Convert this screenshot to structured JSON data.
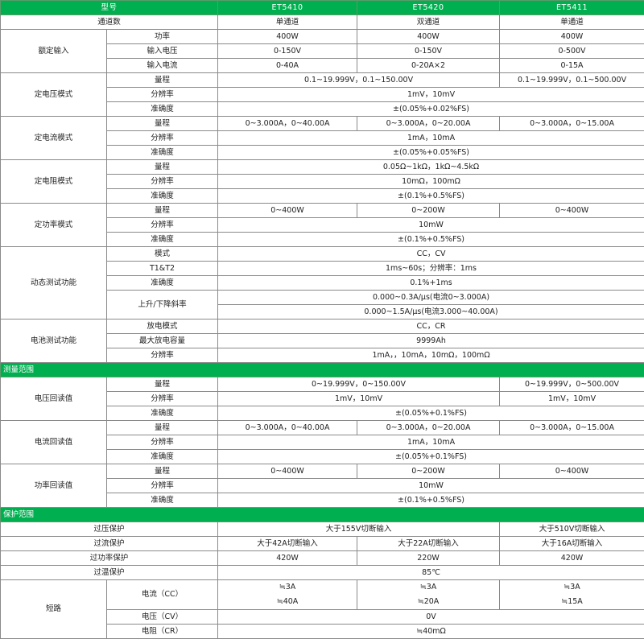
{
  "theme": {
    "header_bg": "#00b050",
    "header_text": "#ffffff",
    "border": "#8a8a8a"
  },
  "rows": [
    {
      "type": "header",
      "cells": [
        "型号",
        "ET5410",
        "ET5420",
        "ET5411"
      ]
    },
    {
      "cells": [
        "通道数",
        "单通道",
        "双通道",
        "单通道"
      ]
    },
    {
      "cells": [
        "额定输入",
        "功率",
        "400W",
        "400W",
        "400W"
      ]
    },
    {
      "cells": [
        "输入电压",
        "0-150V",
        "0-150V",
        "0-500V"
      ]
    },
    {
      "cells": [
        "输入电流",
        "0-40A",
        "0-20A×2",
        "0-15A"
      ]
    },
    {
      "cells": [
        "定电压模式",
        "量程",
        "0.1~19.999V，0.1~150.00V",
        "0.1~19.999V，0.1~500.00V"
      ]
    },
    {
      "cells": [
        "分辨率",
        "1mV，10mV"
      ]
    },
    {
      "cells": [
        "准确度",
        "±(0.05%+0.02%FS)"
      ]
    },
    {
      "cells": [
        "定电流模式",
        "量程",
        "0~3.000A，0~40.00A",
        "0~3.000A，0~20.00A",
        "0~3.000A，0~15.00A"
      ]
    },
    {
      "cells": [
        "分辨率",
        "1mA，10mA"
      ]
    },
    {
      "cells": [
        "准确度",
        "±(0.05%+0.05%FS)"
      ]
    },
    {
      "cells": [
        "定电阻模式",
        "量程",
        "0.05Ω~1kΩ，1kΩ~4.5kΩ"
      ]
    },
    {
      "cells": [
        "分辨率",
        "10mΩ，100mΩ"
      ]
    },
    {
      "cells": [
        "准确度",
        "±(0.1%+0.5%FS)"
      ]
    },
    {
      "cells": [
        "定功率模式",
        "量程",
        "0~400W",
        "0~200W",
        "0~400W"
      ]
    },
    {
      "cells": [
        "分辨率",
        "10mW"
      ]
    },
    {
      "cells": [
        "准确度",
        "±(0.1%+0.5%FS)"
      ]
    },
    {
      "cells": [
        "动态测试功能",
        "模式",
        "CC，CV"
      ]
    },
    {
      "cells": [
        "T1&T2",
        "1ms~60s；分辨率：1ms"
      ]
    },
    {
      "cells": [
        "准确度",
        "0.1%+1ms"
      ]
    },
    {
      "cells": [
        "上升/下降斜率",
        "0.000~0.3A/μs(电流0~3.000A)"
      ]
    },
    {
      "cells": [
        "0.000~1.5A/μs(电流3.000~40.00A)"
      ]
    },
    {
      "cells": [
        "电池测试功能",
        "放电模式",
        "CC，CR"
      ]
    },
    {
      "cells": [
        "最大放电容量",
        "9999Ah"
      ]
    },
    {
      "cells": [
        "分辨率",
        "1mA，，10mA，10mΩ，100mΩ"
      ]
    },
    {
      "type": "section",
      "cells": [
        "测量范围"
      ]
    },
    {
      "cells": [
        "电压回读值",
        "量程",
        "0~19.999V，0~150.00V",
        "0~19.999V，0~500.00V"
      ]
    },
    {
      "cells": [
        "分辨率",
        "1mV，10mV",
        "1mV，10mV"
      ]
    },
    {
      "cells": [
        "准确度",
        "±(0.05%+0.1%FS)"
      ]
    },
    {
      "cells": [
        "电流回读值",
        "量程",
        "0~3.000A，0~40.00A",
        "0~3.000A，0~20.00A",
        "0~3.000A，0~15.00A"
      ]
    },
    {
      "cells": [
        "分辨率",
        "1mA，10mA"
      ]
    },
    {
      "cells": [
        "准确度",
        "±(0.05%+0.1%FS)"
      ]
    },
    {
      "cells": [
        "功率回读值",
        "量程",
        "0~400W",
        "0~200W",
        "0~400W"
      ]
    },
    {
      "cells": [
        "分辨率",
        "10mW"
      ]
    },
    {
      "cells": [
        "准确度",
        "±(0.1%+0.5%FS)"
      ]
    },
    {
      "type": "section",
      "cells": [
        "保护范围"
      ]
    },
    {
      "cells": [
        "过压保护",
        "大于155V切断输入",
        "大于510V切断输入"
      ]
    },
    {
      "cells": [
        "过流保护",
        "大于42A切断输入",
        "大于22A切断输入",
        "大于16A切断输入"
      ]
    },
    {
      "cells": [
        "过功率保护",
        "420W",
        "220W",
        "420W"
      ]
    },
    {
      "cells": [
        "过温保护",
        "85℃"
      ]
    },
    {
      "type": "tall",
      "cells": [
        "短路",
        "电流（CC）",
        "≒3A\n≒40A",
        "≒3A\n≒20A",
        "≒3A\n≒15A"
      ]
    },
    {
      "cells": [
        "电压（CV）",
        "0V"
      ]
    },
    {
      "cells": [
        "电阻（CR）",
        "≒40mΩ"
      ]
    }
  ]
}
